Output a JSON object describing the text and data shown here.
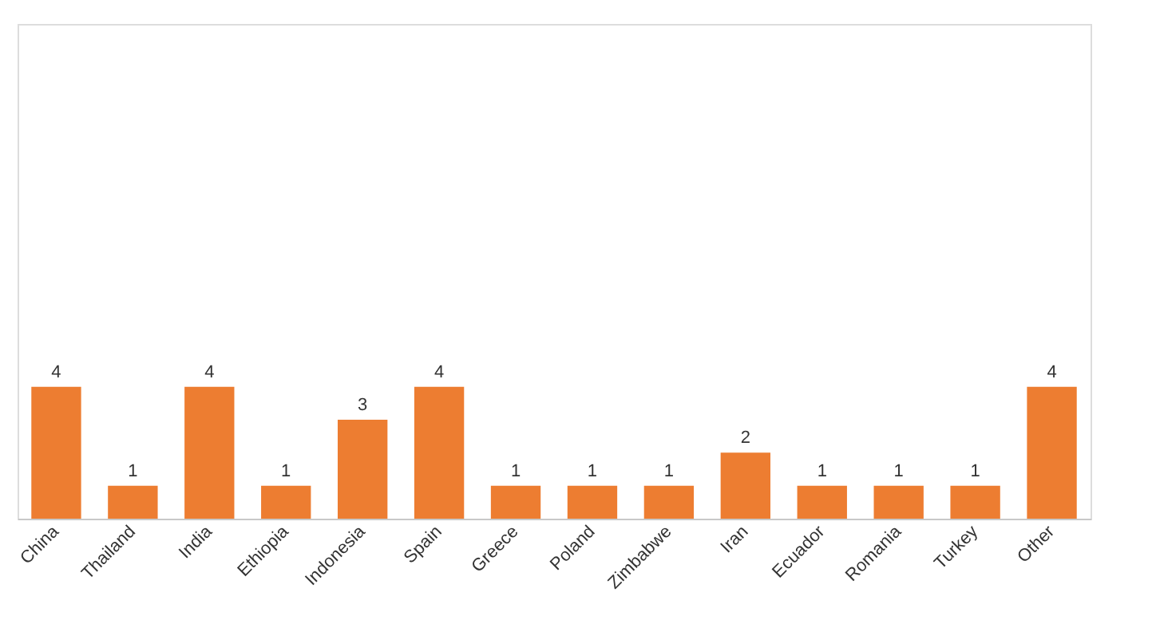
{
  "chart_data": {
    "type": "bar",
    "categories": [
      "China",
      "Thailand",
      "India",
      "Ethiopia",
      "Indonesia",
      "Spain",
      "Greece",
      "Poland",
      "Zimbabwe",
      "Iran",
      "Ecuador",
      "Romania",
      "Turkey",
      "Other"
    ],
    "values": [
      4,
      1,
      4,
      1,
      3,
      4,
      1,
      1,
      1,
      2,
      1,
      1,
      1,
      4
    ],
    "color": "#ed7d31",
    "ylim": [
      0,
      15
    ],
    "data_labels": true,
    "tick_labels": "x"
  }
}
